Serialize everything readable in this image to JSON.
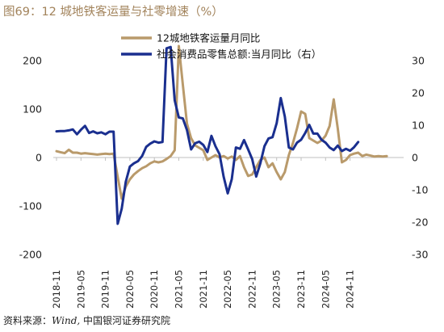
{
  "chart_data": {
    "type": "line",
    "title": "图69：12 城地铁客运量与社零增速（%）",
    "source_prefix": "资料来源：",
    "source_wind": "Wind,",
    "source_suffix": "中国银河证券研究院",
    "colors": {
      "metro": "#b99a6b",
      "retail": "#1a2f8f",
      "title": "#a2835b"
    },
    "y_left": {
      "ylim": [
        -200,
        200
      ],
      "ticks": [
        "200",
        "100",
        "0",
        "-100",
        "-200"
      ]
    },
    "y_right": {
      "ylim": [
        -30,
        30
      ],
      "ticks": [
        "30",
        "20",
        "10",
        "0",
        "-10",
        "-20",
        "-30"
      ]
    },
    "x_ticks": [
      "2018-11",
      "2019-05",
      "2019-11",
      "2020-05",
      "2020-11",
      "2021-05",
      "2021-11",
      "2022-05",
      "2022-11",
      "2023-05",
      "2023-11",
      "2024-05",
      "2024-11"
    ],
    "x_start": "2018-11",
    "series": [
      {
        "name": "12城地铁客运量月同比",
        "axis": "left",
        "values": [
          13,
          11,
          9,
          16,
          10,
          10,
          8,
          9,
          8,
          7,
          6,
          7,
          8,
          7,
          8,
          -40,
          -85,
          -60,
          -45,
          -35,
          -28,
          -22,
          -18,
          -12,
          -8,
          -10,
          -8,
          -3,
          3,
          15,
          230,
          150,
          70,
          40,
          25,
          20,
          15,
          -5,
          0,
          5,
          0,
          3,
          -2,
          2,
          -5,
          3,
          -20,
          -38,
          -35,
          -20,
          -5,
          0,
          -20,
          -12,
          -30,
          -45,
          -30,
          5,
          30,
          60,
          95,
          90,
          40,
          35,
          30,
          35,
          45,
          65,
          120,
          60,
          -10,
          -5,
          5,
          8,
          10,
          3,
          6,
          4,
          2,
          3,
          2,
          3
        ]
      },
      {
        "name": "社会消费品零售总额:当月同比（右）",
        "axis": "right",
        "values": [
          8.1,
          8.2,
          8.2,
          8.4,
          8.7,
          7.2,
          8.6,
          9.8,
          7.6,
          8.1,
          7.5,
          7.8,
          7.2,
          8.0,
          8.0,
          -20.5,
          -15.8,
          -7.5,
          -2.8,
          -1.8,
          -1.1,
          0.5,
          3.3,
          4.3,
          5.0,
          4.6,
          4.8,
          33.8,
          34.2,
          17.7,
          12.4,
          12.1,
          8.5,
          2.5,
          4.4,
          4.9,
          3.9,
          1.7,
          6.7,
          3.5,
          1.0,
          -5.9,
          -11.1,
          -6.7,
          3.1,
          2.7,
          5.4,
          2.5,
          -0.5,
          -5.9,
          -1.8,
          3.5,
          5.9,
          6.3,
          10.6,
          18.4,
          12.7,
          3.1,
          2.5,
          4.6,
          5.5,
          7.6,
          10.1,
          7.4,
          7.4,
          5.5,
          4.6,
          3.1,
          2.3,
          3.7,
          2.0,
          2.7,
          2.1,
          3.2,
          4.8
        ]
      }
    ]
  }
}
